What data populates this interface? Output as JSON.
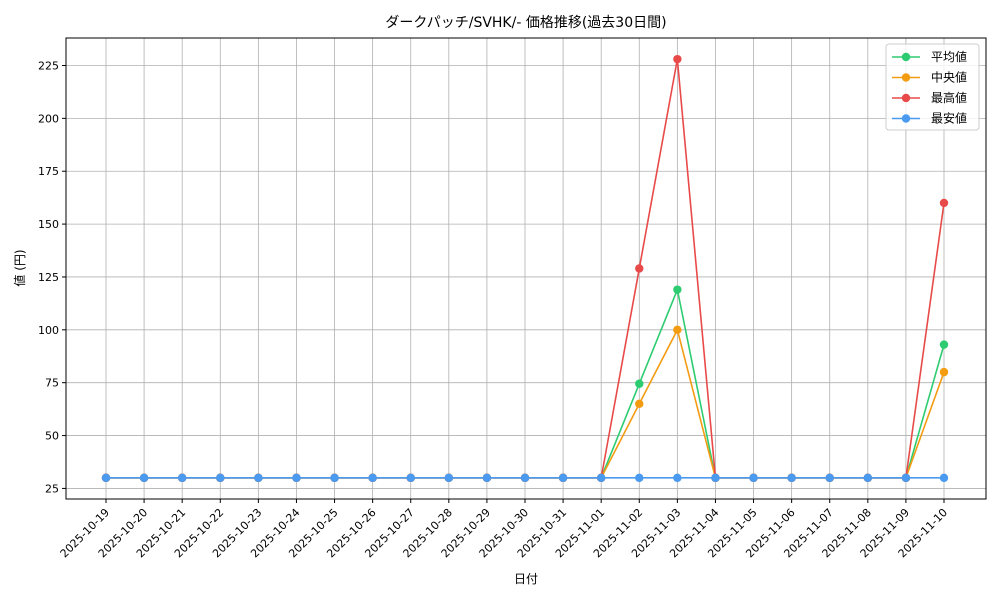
{
  "chart_data": {
    "type": "line",
    "title": "ダークパッチ/SVHK/- 価格推移(過去30日間)",
    "xlabel": "日付",
    "ylabel": "値 (円)",
    "categories": [
      "2025-10-19",
      "2025-10-20",
      "2025-10-21",
      "2025-10-22",
      "2025-10-23",
      "2025-10-24",
      "2025-10-25",
      "2025-10-26",
      "2025-10-27",
      "2025-10-28",
      "2025-10-29",
      "2025-10-30",
      "2025-10-31",
      "2025-11-01",
      "2025-11-02",
      "2025-11-03",
      "2025-11-04",
      "2025-11-05",
      "2025-11-06",
      "2025-11-07",
      "2025-11-08",
      "2025-11-09",
      "2025-11-10"
    ],
    "ylim": [
      20,
      238
    ],
    "yticks": [
      25,
      50,
      75,
      100,
      125,
      150,
      175,
      200,
      225
    ],
    "grid": true,
    "legend_position": "top-right",
    "series": [
      {
        "name": "平均値",
        "color": "#2ecc71",
        "values": [
          30,
          30,
          30,
          30,
          30,
          30,
          30,
          30,
          30,
          30,
          30,
          30,
          30,
          30,
          74.5,
          119,
          30,
          30,
          30,
          30,
          30,
          30,
          93
        ]
      },
      {
        "name": "中央値",
        "color": "#f39c12",
        "values": [
          30,
          30,
          30,
          30,
          30,
          30,
          30,
          30,
          30,
          30,
          30,
          30,
          30,
          30,
          65,
          100,
          30,
          30,
          30,
          30,
          30,
          30,
          80
        ]
      },
      {
        "name": "最高値",
        "color": "#e84a4a",
        "values": [
          30,
          30,
          30,
          30,
          30,
          30,
          30,
          30,
          30,
          30,
          30,
          30,
          30,
          30,
          129,
          228,
          30,
          30,
          30,
          30,
          30,
          30,
          160
        ]
      },
      {
        "name": "最安値",
        "color": "#4a9af0",
        "values": [
          30,
          30,
          30,
          30,
          30,
          30,
          30,
          30,
          30,
          30,
          30,
          30,
          30,
          30,
          30,
          30,
          30,
          30,
          30,
          30,
          30,
          30,
          30
        ]
      }
    ]
  }
}
